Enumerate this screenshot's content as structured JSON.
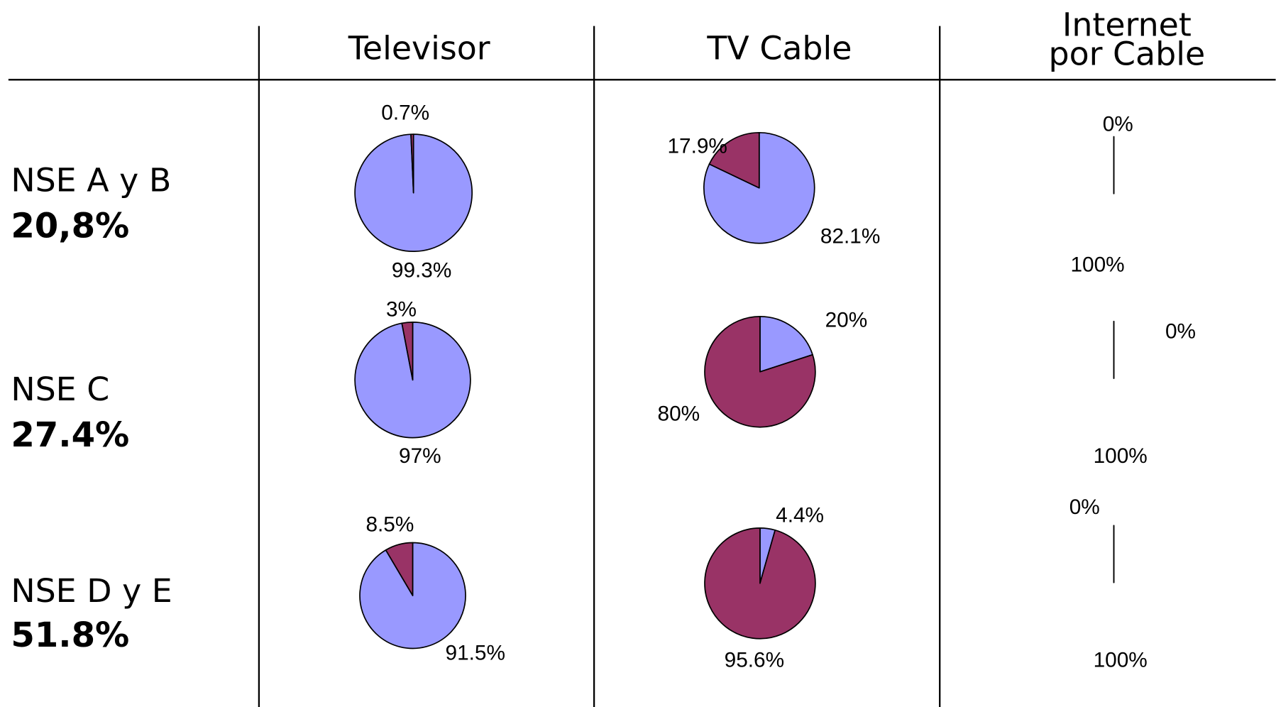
{
  "table": {
    "headers": [
      [
        "Televisor"
      ],
      [
        "TV Cable"
      ],
      [
        "Internet",
        "por Cable"
      ]
    ],
    "rows": [
      {
        "label": "NSE A y B",
        "share": "20,8%"
      },
      {
        "label": "NSE C",
        "share": "27.4%"
      },
      {
        "label": "NSE D y E",
        "share": "51.8%"
      }
    ]
  },
  "chart_data": [
    {
      "type": "pie",
      "values": [
        99.3,
        0.7
      ],
      "value_labels": [
        "99.3%",
        "0.7%"
      ],
      "colors": [
        "#9999ff",
        "#993366"
      ]
    },
    {
      "type": "pie",
      "values": [
        82.1,
        17.9
      ],
      "value_labels": [
        "82.1%",
        "17.9%"
      ],
      "colors": [
        "#9999ff",
        "#993366"
      ]
    },
    {
      "type": "pie",
      "values": [
        100,
        0
      ],
      "value_labels": [
        "100%",
        "0%"
      ],
      "colors": [
        "none",
        "none"
      ]
    },
    {
      "type": "pie",
      "values": [
        97,
        3
      ],
      "value_labels": [
        "97%",
        "3%"
      ],
      "colors": [
        "#9999ff",
        "#993366"
      ]
    },
    {
      "type": "pie",
      "values": [
        20,
        80
      ],
      "value_labels": [
        "20%",
        "80%"
      ],
      "colors": [
        "#9999ff",
        "#993366"
      ]
    },
    {
      "type": "pie",
      "values": [
        100,
        0
      ],
      "value_labels": [
        "100%",
        "0%"
      ],
      "colors": [
        "none",
        "none"
      ]
    },
    {
      "type": "pie",
      "values": [
        91.5,
        8.5
      ],
      "value_labels": [
        "91.5%",
        "8.5%"
      ],
      "colors": [
        "#9999ff",
        "#993366"
      ]
    },
    {
      "type": "pie",
      "values": [
        4.4,
        95.6
      ],
      "value_labels": [
        "4.4%",
        "95.6%"
      ],
      "colors": [
        "#9999ff",
        "#993366"
      ]
    },
    {
      "type": "pie",
      "values": [
        100,
        0
      ],
      "value_labels": [
        "100%",
        "0%"
      ],
      "colors": [
        "none",
        "none"
      ]
    }
  ]
}
